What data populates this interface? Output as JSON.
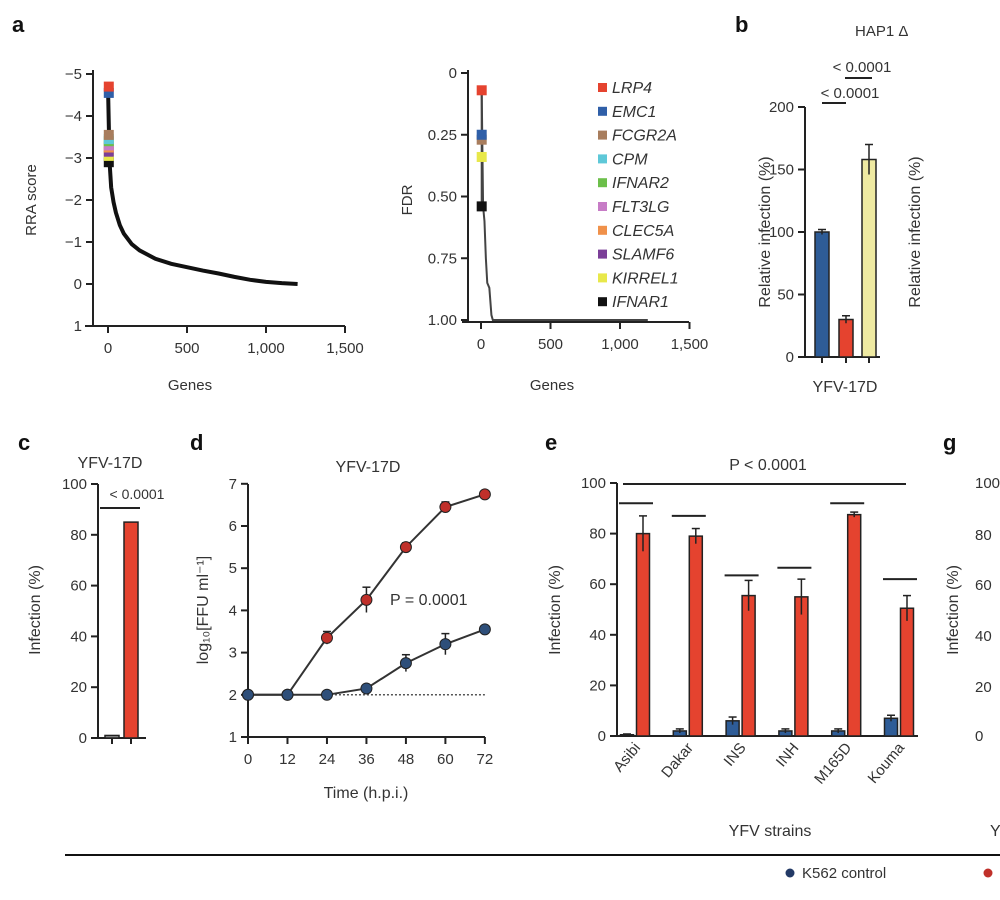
{
  "panel_labels": {
    "a": "a",
    "b": "b",
    "c": "c",
    "d": "d",
    "e": "e",
    "g": "g"
  },
  "colors": {
    "red": "#e5432f",
    "blue": "#2e5c97",
    "yellow": "#efeaa2",
    "grey": "#9a9a9a",
    "navy": "#233a66",
    "dark_red": "#c0302a"
  },
  "bottom_legend": {
    "items": [
      {
        "label": "K562 control",
        "color": "#233a66"
      },
      {
        "label": "",
        "color": "#c0302a"
      }
    ]
  },
  "chart_data": [
    {
      "panel": "a",
      "type": "line",
      "xlabel": "Genes",
      "ylabel": "RRA score",
      "xlim": [
        0,
        1500
      ],
      "ylim": [
        1,
        -5
      ],
      "xticks": [
        0,
        500,
        1000,
        1500
      ],
      "xtick_labels": [
        "0",
        "500",
        "1,000",
        "1,500"
      ],
      "yticks": [
        -5,
        -4,
        -3,
        -2,
        -1,
        0,
        1
      ],
      "ytick_labels": [
        "−5",
        "−4",
        "−3",
        "−2",
        "−1",
        "0",
        "1"
      ],
      "curve": {
        "x": [
          0,
          10,
          20,
          35,
          50,
          75,
          100,
          150,
          200,
          300,
          400,
          500,
          600,
          700,
          800,
          900,
          1000,
          1100,
          1200
        ],
        "y": [
          -4.7,
          -2.9,
          -2.3,
          -1.95,
          -1.7,
          -1.4,
          -1.2,
          -0.95,
          -0.8,
          -0.6,
          -0.48,
          -0.4,
          -0.32,
          -0.25,
          -0.17,
          -0.1,
          -0.05,
          -0.02,
          0
        ]
      },
      "highlighted": [
        {
          "gene": "LRP4",
          "rank": 5,
          "value": -4.7,
          "color": "#e5432f"
        },
        {
          "gene": "EMC1",
          "rank": 5,
          "value": -4.55,
          "color": "#2f5fa8"
        },
        {
          "gene": "FCGR2A",
          "rank": 5,
          "value": -3.55,
          "color": "#a87d5d"
        },
        {
          "gene": "CPM",
          "rank": 5,
          "value": -3.45,
          "color": "#5ec8d8"
        },
        {
          "gene": "IFNAR2",
          "rank": 5,
          "value": -3.4,
          "color": "#6cbf4a"
        },
        {
          "gene": "FLT3LG",
          "rank": 5,
          "value": -3.3,
          "color": "#c77cc6"
        },
        {
          "gene": "CLEC5A",
          "rank": 5,
          "value": -3.25,
          "color": "#f0914a"
        },
        {
          "gene": "SLAMF6",
          "rank": 5,
          "value": -3.15,
          "color": "#7b3f98"
        },
        {
          "gene": "KIRREL1",
          "rank": 5,
          "value": -3.05,
          "color": "#e8e84a"
        },
        {
          "gene": "IFNAR1",
          "rank": 5,
          "value": -2.9,
          "color": "#111111"
        }
      ]
    },
    {
      "panel": "a",
      "type": "line",
      "xlabel": "Genes",
      "ylabel": "FDR",
      "xlim": [
        0,
        1500
      ],
      "ylim": [
        1,
        0
      ],
      "xticks": [
        0,
        500,
        1000,
        1500
      ],
      "xtick_labels": [
        "0",
        "500",
        "1,000",
        "1,500"
      ],
      "yticks": [
        0,
        0.25,
        0.5,
        0.75,
        1
      ],
      "ytick_labels": [
        "0",
        "0.25",
        "0.50",
        "0.75",
        "1.00"
      ],
      "curve": {
        "x": [
          5,
          15,
          25,
          35,
          45,
          60,
          75,
          85,
          1200
        ],
        "y": [
          0.07,
          0.54,
          0.6,
          0.75,
          0.85,
          0.87,
          0.98,
          1.0,
          1.0
        ]
      },
      "highlighted": [
        {
          "gene": "LRP4",
          "rank": 5,
          "value": 0.07,
          "color": "#e5432f"
        },
        {
          "gene": "EMC1",
          "rank": 5,
          "value": 0.25,
          "color": "#2f5fa8"
        },
        {
          "gene": "FCGR2A",
          "rank": 5,
          "value": 0.27,
          "color": "#a87d5d"
        },
        {
          "gene": "KIRREL1",
          "rank": 5,
          "value": 0.34,
          "color": "#e8e84a"
        },
        {
          "gene": "IFNAR1",
          "rank": 5,
          "value": 0.54,
          "color": "#111111"
        }
      ],
      "legend": [
        {
          "label": "LRP4",
          "color": "#e5432f"
        },
        {
          "label": "EMC1",
          "color": "#2f5fa8"
        },
        {
          "label": "FCGR2A",
          "color": "#a87d5d"
        },
        {
          "label": "CPM",
          "color": "#5ec8d8"
        },
        {
          "label": "IFNAR2",
          "color": "#6cbf4a"
        },
        {
          "label": "FLT3LG",
          "color": "#c77cc6"
        },
        {
          "label": "CLEC5A",
          "color": "#f0914a"
        },
        {
          "label": "SLAMF6",
          "color": "#7b3f98"
        },
        {
          "label": "KIRREL1",
          "color": "#e8e84a"
        },
        {
          "label": "IFNAR1",
          "color": "#111111"
        }
      ]
    },
    {
      "panel": "b",
      "type": "bar",
      "title": "HAP1 Δ",
      "ylabel": "Relative infection (%)",
      "ylabel_second": "Relative infection (%)",
      "ylim": [
        0,
        200
      ],
      "yticks": [
        0,
        50,
        100,
        150,
        200
      ],
      "ytick_labels": [
        "0",
        "50",
        "100",
        "150",
        "200"
      ],
      "category": "YFV-17D",
      "values": [
        100,
        30,
        158
      ],
      "errors": [
        2,
        3,
        12
      ],
      "colors": [
        "#2e5c97",
        "#e5432f",
        "#efeaa2"
      ],
      "annotations": [
        "< 0.0001",
        "< 0.0001"
      ]
    },
    {
      "panel": "c",
      "type": "bar",
      "title": "YFV-17D",
      "ylabel": "Infection (%)",
      "ylim": [
        0,
        100
      ],
      "yticks": [
        0,
        20,
        40,
        60,
        80,
        100
      ],
      "ytick_labels": [
        "0",
        "20",
        "40",
        "60",
        "80",
        "100"
      ],
      "values": [
        1,
        85
      ],
      "errors": [
        0.5,
        1.5
      ],
      "colors": [
        "#9a9a9a",
        "#e5432f"
      ],
      "annotation": "< 0.0001"
    },
    {
      "panel": "d",
      "type": "line",
      "title": "YFV-17D",
      "xlabel": "Time (h.p.i.)",
      "ylabel": "log₁₀[FFU ml⁻¹]",
      "xlim": [
        0,
        72
      ],
      "ylim": [
        1,
        7
      ],
      "xticks": [
        0,
        12,
        24,
        36,
        48,
        60,
        72
      ],
      "xtick_labels": [
        "0",
        "12",
        "24",
        "36",
        "48",
        "60",
        "72"
      ],
      "yticks": [
        1,
        2,
        3,
        4,
        5,
        6,
        7
      ],
      "ytick_labels": [
        "1",
        "2",
        "3",
        "4",
        "5",
        "6",
        "7"
      ],
      "detection_limit": 2,
      "annotation": "P = 0.0001",
      "x": [
        0,
        12,
        24,
        36,
        48,
        60,
        72
      ],
      "series": [
        {
          "color": "#c0302a",
          "values": [
            2,
            2,
            3.35,
            4.25,
            5.5,
            6.45,
            6.75
          ],
          "errors": [
            0,
            0,
            0.15,
            0.3,
            0.1,
            0.12,
            0.05
          ]
        },
        {
          "color": "#2e4f7a",
          "values": [
            2,
            2,
            2,
            2.15,
            2.75,
            3.2,
            3.55
          ],
          "errors": [
            0,
            0,
            0,
            0.05,
            0.2,
            0.25,
            0.08
          ]
        }
      ]
    },
    {
      "panel": "e",
      "type": "bar",
      "title": "P < 0.0001",
      "xlabel": "YFV strains",
      "ylabel": "Infection (%)",
      "ylim": [
        0,
        100
      ],
      "yticks": [
        0,
        20,
        40,
        60,
        80,
        100
      ],
      "ytick_labels": [
        "0",
        "20",
        "40",
        "60",
        "80",
        "100"
      ],
      "categories": [
        "Asibi",
        "Dakar",
        "INS",
        "INH",
        "M165D",
        "Kouma"
      ],
      "series": [
        {
          "color": "#2e5c97",
          "values": [
            0.5,
            2,
            6,
            2,
            2,
            7
          ],
          "errors": [
            0.3,
            0.8,
            1.5,
            0.8,
            0.8,
            1.2
          ]
        },
        {
          "color": "#e5432f",
          "values": [
            80,
            79,
            55.5,
            55,
            87.5,
            50.5
          ],
          "errors": [
            7,
            3,
            6,
            7,
            1,
            5
          ]
        }
      ],
      "bracket_levels": [
        92,
        87,
        63.5,
        66.5,
        92,
        62
      ]
    },
    {
      "panel": "g",
      "type": "bar",
      "ylabel": "Infection (%)",
      "ytick_labels": [
        "100",
        "80",
        "60",
        "40",
        "20",
        "0"
      ],
      "xlabel": "Y"
    }
  ]
}
